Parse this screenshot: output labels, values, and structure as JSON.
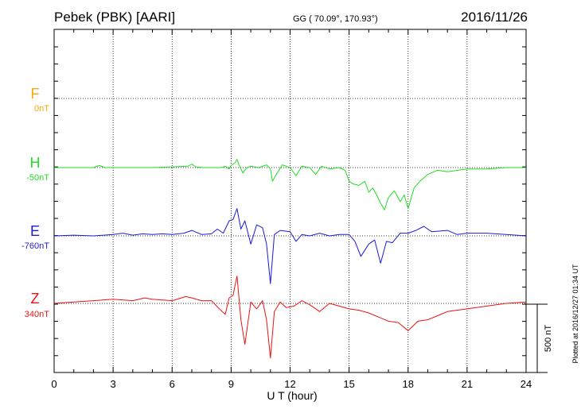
{
  "header": {
    "station": "Pebek (PBK)  [AARI]",
    "coords": "GG ( 70.09°, 170.93°)",
    "date": "2016/11/26"
  },
  "footer": {
    "plotted": "Plotted at 2016/12/27 01:34 UT"
  },
  "chart_data": {
    "type": "line",
    "xlabel": "U T (hour)",
    "xlim": [
      0,
      24
    ],
    "xticks": [
      0,
      3,
      6,
      9,
      12,
      15,
      18,
      21,
      24
    ],
    "xtick_labels": [
      "0",
      "3",
      "6",
      "9",
      "12",
      "15",
      "18",
      "21",
      "24"
    ],
    "scale_bar": {
      "label": "500 nT",
      "value_nT": 500
    },
    "grid": true,
    "series": [
      {
        "name": "F",
        "baseline_label": "0nT",
        "color": "#ffa500",
        "has_data": false,
        "x": [],
        "y": []
      },
      {
        "name": "H",
        "baseline_label": "-50nT",
        "color": "#22dd22",
        "has_data": true,
        "x": [
          0,
          1,
          2,
          2.3,
          2.6,
          3,
          4,
          5,
          6,
          6.8,
          7,
          7.2,
          7.6,
          8,
          8.5,
          8.7,
          8.9,
          9,
          9.2,
          9.3,
          9.4,
          9.6,
          9.8,
          10,
          10.4,
          10.8,
          11,
          11.1,
          11.3,
          11.6,
          12,
          12.3,
          12.6,
          13,
          13.3,
          13.6,
          14,
          14.5,
          14.8,
          15,
          15.2,
          15.5,
          15.8,
          16,
          16.2,
          16.4,
          16.6,
          16.8,
          17,
          17.3,
          17.6,
          17.8,
          18,
          18.3,
          18.6,
          19,
          19.5,
          20,
          21,
          22,
          23,
          24
        ],
        "y": [
          0,
          0,
          0,
          15,
          0,
          0,
          0,
          0,
          5,
          10,
          25,
          5,
          0,
          0,
          0,
          10,
          -10,
          15,
          35,
          60,
          20,
          -40,
          0,
          10,
          0,
          20,
          -10,
          -100,
          -50,
          20,
          0,
          -60,
          10,
          0,
          -50,
          10,
          -10,
          0,
          -20,
          -100,
          -120,
          -130,
          -100,
          -180,
          -150,
          -200,
          -260,
          -310,
          -220,
          -170,
          -250,
          -200,
          -300,
          -150,
          -100,
          -50,
          -20,
          -30,
          -10,
          -10,
          0,
          0
        ]
      },
      {
        "name": "E",
        "baseline_label": "-760nT",
        "color": "#1a1adc",
        "has_data": true,
        "x": [
          0,
          1,
          2,
          3,
          3.5,
          4,
          4.5,
          5,
          5.5,
          6,
          6.6,
          7,
          7.5,
          8,
          8.3,
          8.6,
          8.9,
          9.1,
          9.3,
          9.5,
          9.7,
          10,
          10.3,
          10.6,
          10.8,
          11,
          11.2,
          11.5,
          12,
          12.3,
          12.6,
          13,
          13.5,
          14,
          14.5,
          15,
          15.3,
          15.6,
          16,
          16.3,
          16.6,
          16.9,
          17.2,
          17.6,
          18,
          18.4,
          18.8,
          19.2,
          20,
          20.5,
          21,
          22,
          23,
          24
        ],
        "y": [
          0,
          5,
          0,
          10,
          20,
          5,
          15,
          10,
          15,
          10,
          20,
          40,
          10,
          15,
          50,
          20,
          110,
          120,
          200,
          50,
          110,
          -60,
          80,
          60,
          -60,
          -350,
          10,
          40,
          30,
          -40,
          10,
          0,
          20,
          0,
          10,
          10,
          -40,
          -150,
          -60,
          -30,
          -200,
          -40,
          -50,
          20,
          20,
          40,
          70,
          30,
          40,
          10,
          20,
          20,
          10,
          0
        ]
      },
      {
        "name": "Z",
        "baseline_label": "340nT",
        "color": "#ee1111",
        "has_data": true,
        "x": [
          0,
          1,
          2,
          3,
          4,
          4.6,
          5,
          6,
          6.7,
          7,
          7.5,
          8,
          8.4,
          8.7,
          8.9,
          9.1,
          9.3,
          9.5,
          9.7,
          10,
          10.3,
          10.6,
          10.8,
          11,
          11.2,
          11.5,
          11.8,
          12.2,
          12.6,
          13,
          13.5,
          14,
          14.5,
          15,
          15.5,
          16,
          16.5,
          17,
          17.5,
          18,
          18.5,
          19,
          19.5,
          20,
          21,
          22,
          23,
          24
        ],
        "y": [
          0,
          10,
          20,
          30,
          20,
          40,
          30,
          20,
          50,
          40,
          20,
          20,
          -40,
          -80,
          40,
          60,
          200,
          -120,
          -300,
          10,
          -40,
          20,
          -120,
          -400,
          -60,
          10,
          -30,
          -20,
          20,
          -10,
          -60,
          0,
          -20,
          -40,
          -50,
          -70,
          -100,
          -130,
          -140,
          -200,
          -130,
          -120,
          -90,
          -60,
          -40,
          -20,
          0,
          10
        ]
      }
    ]
  }
}
